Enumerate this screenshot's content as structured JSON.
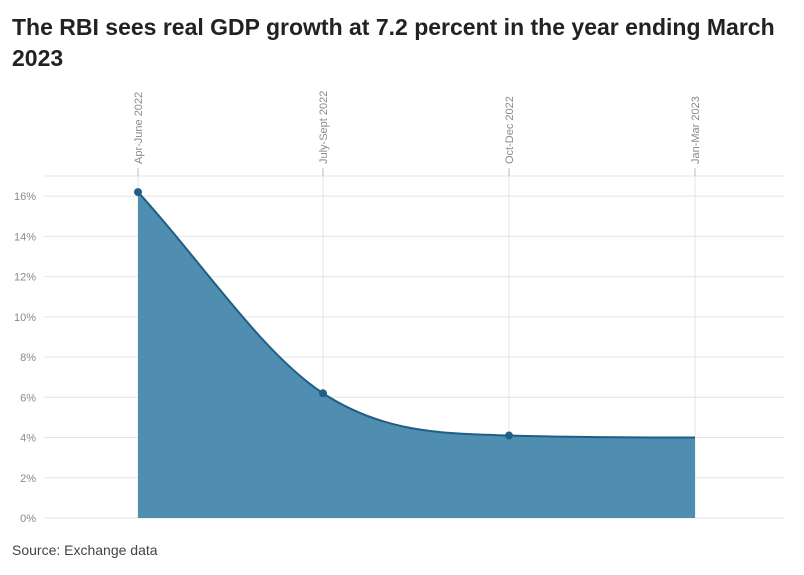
{
  "title": "The RBI sees real GDP growth at 7.2 percent in the year ending March 2023",
  "source": "Source: Exchange data",
  "colors": {
    "area_fill": "#4f8db1",
    "line": "#1f5f86",
    "grid": "#e4e4e4",
    "text": "#222222",
    "tick_text": "#8a8a8a"
  },
  "chart_data": {
    "type": "area",
    "categories": [
      "Apr-June 2022",
      "July-Sept 2022",
      "Oct-Dec 2022",
      "Jan-Mar 2023"
    ],
    "series": [
      {
        "values": [
          16.2,
          6.2,
          4.1,
          4.0
        ]
      }
    ],
    "markers_on": [
      "Apr-June 2022",
      "July-Sept 2022",
      "Oct-Dec 2022"
    ],
    "y_ticks": [
      "0%",
      "2%",
      "4%",
      "6%",
      "8%",
      "10%",
      "12%",
      "14%",
      "16%"
    ],
    "ylim": [
      0,
      17
    ],
    "y_unit": "%",
    "x_axis_position": "top",
    "x_tick_rotation": "vertical",
    "grid": true
  }
}
